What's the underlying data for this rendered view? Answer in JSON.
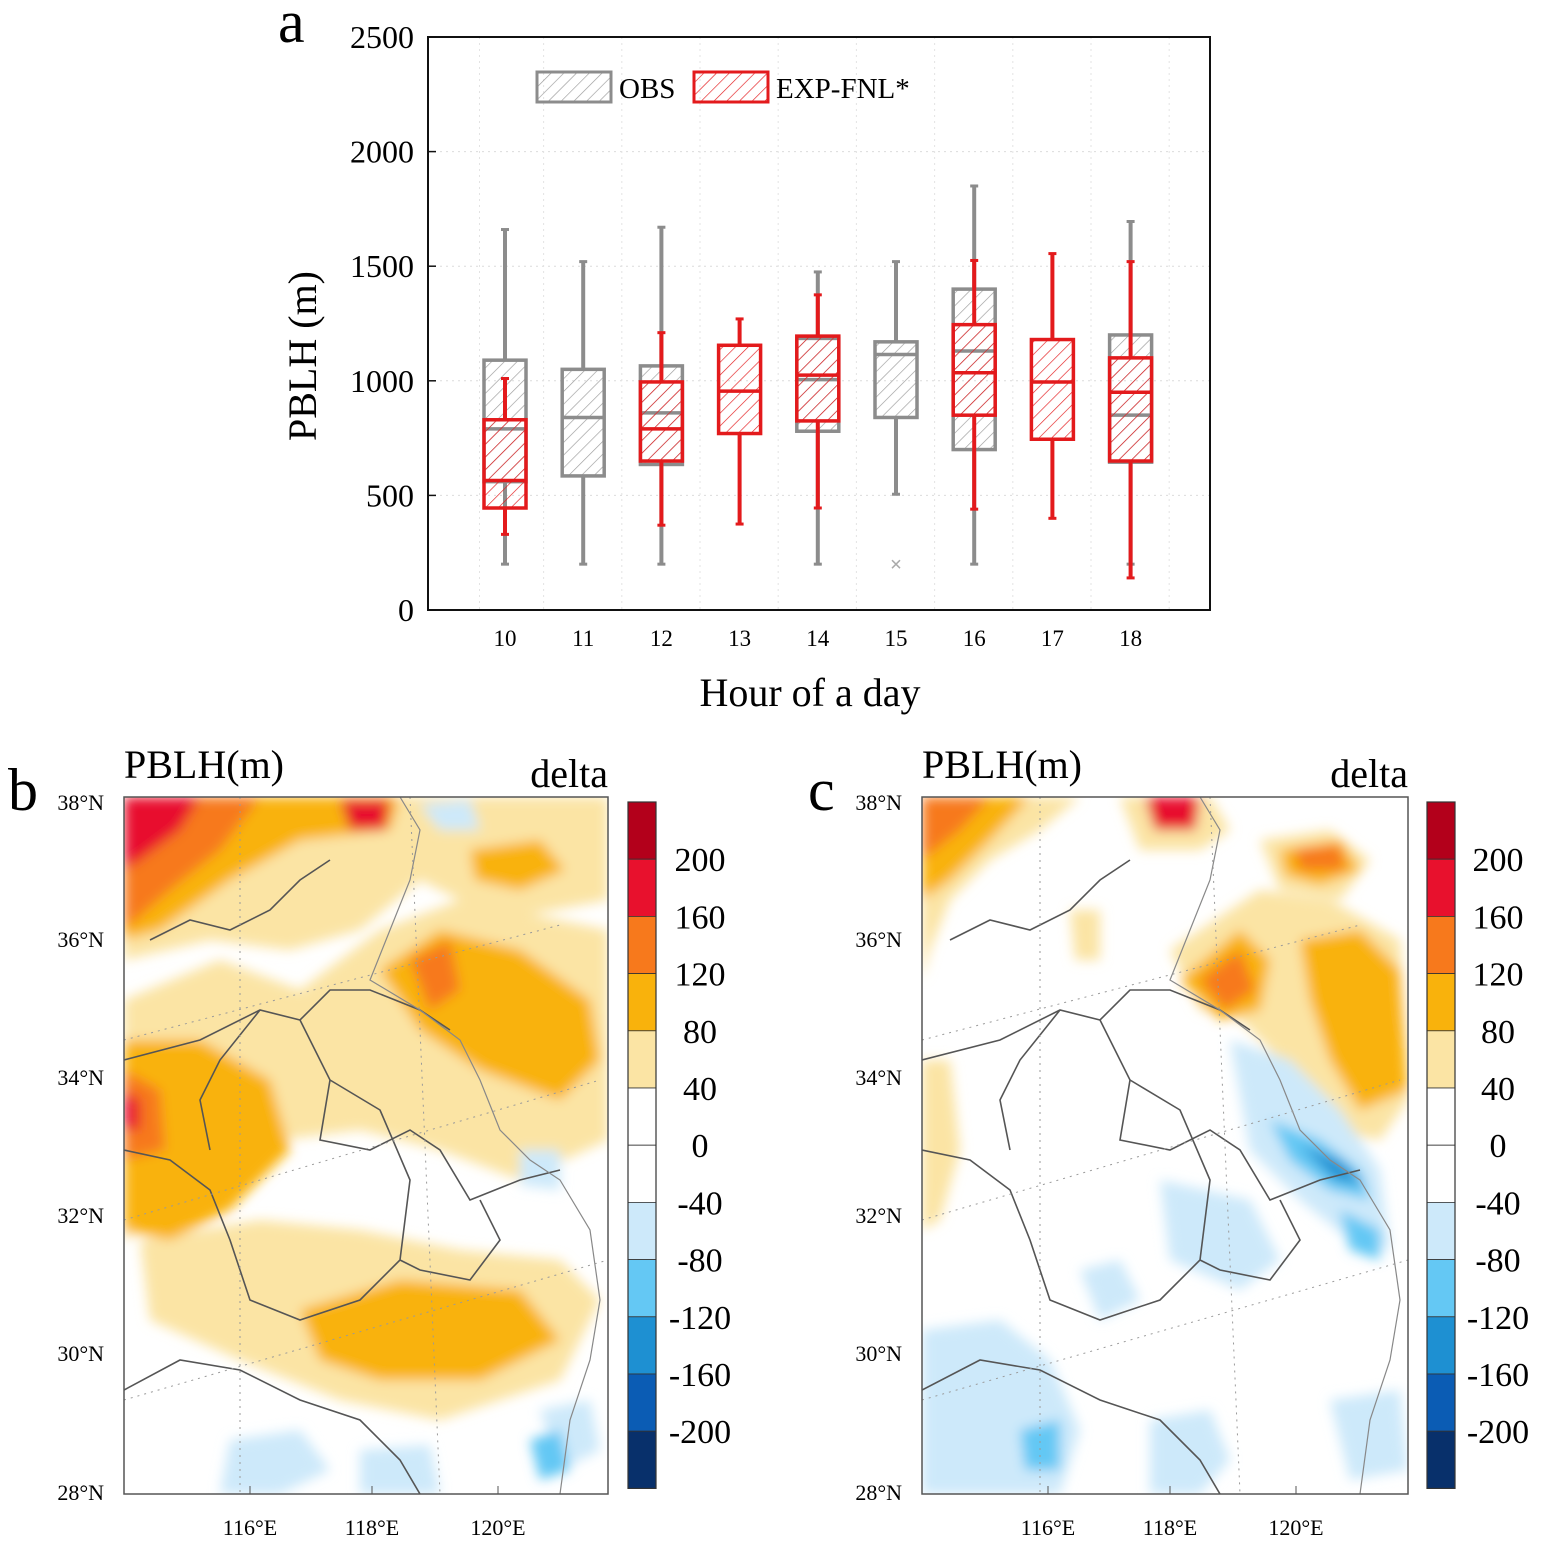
{
  "panels": {
    "a": {
      "label": "a"
    },
    "b": {
      "label": "b",
      "title": "PBLH(m)",
      "subtitle": "delta"
    },
    "c": {
      "label": "c",
      "title": "PBLH(m)",
      "subtitle": "delta"
    }
  },
  "chart_data": [
    {
      "type": "box",
      "panel": "a",
      "xlabel": "Hour of a day",
      "ylabel": "PBLH (m)",
      "ylim": [
        0,
        2500
      ],
      "yticks": [
        "0",
        "500",
        "1000",
        "1500",
        "2000",
        "2500"
      ],
      "categories": [
        "10",
        "11",
        "12",
        "13",
        "14",
        "15",
        "16",
        "17",
        "18"
      ],
      "grid": true,
      "legend_position": "top-left",
      "series": [
        {
          "name": "OBS",
          "color": "#8c8c8c",
          "boxes": [
            {
              "hour": "10",
              "min": 200,
              "q1": 560,
              "median": 790,
              "q3": 1090,
              "max": 1660
            },
            {
              "hour": "11",
              "min": 200,
              "q1": 585,
              "median": 840,
              "q3": 1050,
              "max": 1520
            },
            {
              "hour": "12",
              "min": 200,
              "q1": 635,
              "median": 860,
              "q3": 1065,
              "max": 1670
            },
            {
              "hour": "14",
              "min": 200,
              "q1": 780,
              "median": 1005,
              "q3": 1185,
              "max": 1475
            },
            {
              "hour": "15",
              "min": 505,
              "q1": 840,
              "median": 1115,
              "q3": 1170,
              "max": 1520,
              "outliers": [
                200
              ]
            },
            {
              "hour": "16",
              "min": 200,
              "q1": 700,
              "median": 1130,
              "q3": 1400,
              "max": 1850
            },
            {
              "hour": "18",
              "min": 200,
              "q1": 645,
              "median": 850,
              "q3": 1200,
              "max": 1695
            }
          ]
        },
        {
          "name": "EXP-FNL*",
          "color": "#e31a1c",
          "boxes": [
            {
              "hour": "10",
              "min": 330,
              "q1": 445,
              "median": 565,
              "q3": 830,
              "max": 1010
            },
            {
              "hour": "12",
              "min": 370,
              "q1": 650,
              "median": 790,
              "q3": 995,
              "max": 1210
            },
            {
              "hour": "13",
              "min": 375,
              "q1": 770,
              "median": 955,
              "q3": 1155,
              "max": 1270
            },
            {
              "hour": "14",
              "min": 445,
              "q1": 825,
              "median": 1025,
              "q3": 1195,
              "max": 1375
            },
            {
              "hour": "16",
              "min": 440,
              "q1": 850,
              "median": 1035,
              "q3": 1245,
              "max": 1525
            },
            {
              "hour": "17",
              "min": 400,
              "q1": 745,
              "median": 995,
              "q3": 1180,
              "max": 1555
            },
            {
              "hour": "18",
              "min": 140,
              "q1": 650,
              "median": 950,
              "q3": 1100,
              "max": 1520
            }
          ]
        }
      ]
    },
    {
      "type": "heatmap",
      "panel": "b",
      "lat_labels": [
        "38°N",
        "36°N",
        "34°N",
        "32°N",
        "30°N",
        "28°N"
      ],
      "lon_labels": [
        "116°E",
        "118°E",
        "120°E"
      ],
      "colorbar_labels": [
        "200",
        "160",
        "120",
        "80",
        "40",
        "0",
        "-40",
        "-80",
        "-120",
        "-160",
        "-200"
      ],
      "colorbar_colors": [
        "#b3001b",
        "#e8112d",
        "#f7791c",
        "#f9b20c",
        "#fbe4a4",
        "#ffffff",
        "#ffffff",
        "#cde9fa",
        "#64c8f4",
        "#1e90d2",
        "#0b5cb4",
        "#08306b"
      ]
    },
    {
      "type": "heatmap",
      "panel": "c",
      "lat_labels": [
        "38°N",
        "36°N",
        "34°N",
        "32°N",
        "30°N",
        "28°N"
      ],
      "lon_labels": [
        "116°E",
        "118°E",
        "120°E"
      ],
      "colorbar_labels": [
        "200",
        "160",
        "120",
        "80",
        "40",
        "0",
        "-40",
        "-80",
        "-120",
        "-160",
        "-200"
      ],
      "colorbar_colors": [
        "#b3001b",
        "#e8112d",
        "#f7791c",
        "#f9b20c",
        "#fbe4a4",
        "#ffffff",
        "#ffffff",
        "#cde9fa",
        "#64c8f4",
        "#1e90d2",
        "#0b5cb4",
        "#08306b"
      ]
    }
  ]
}
